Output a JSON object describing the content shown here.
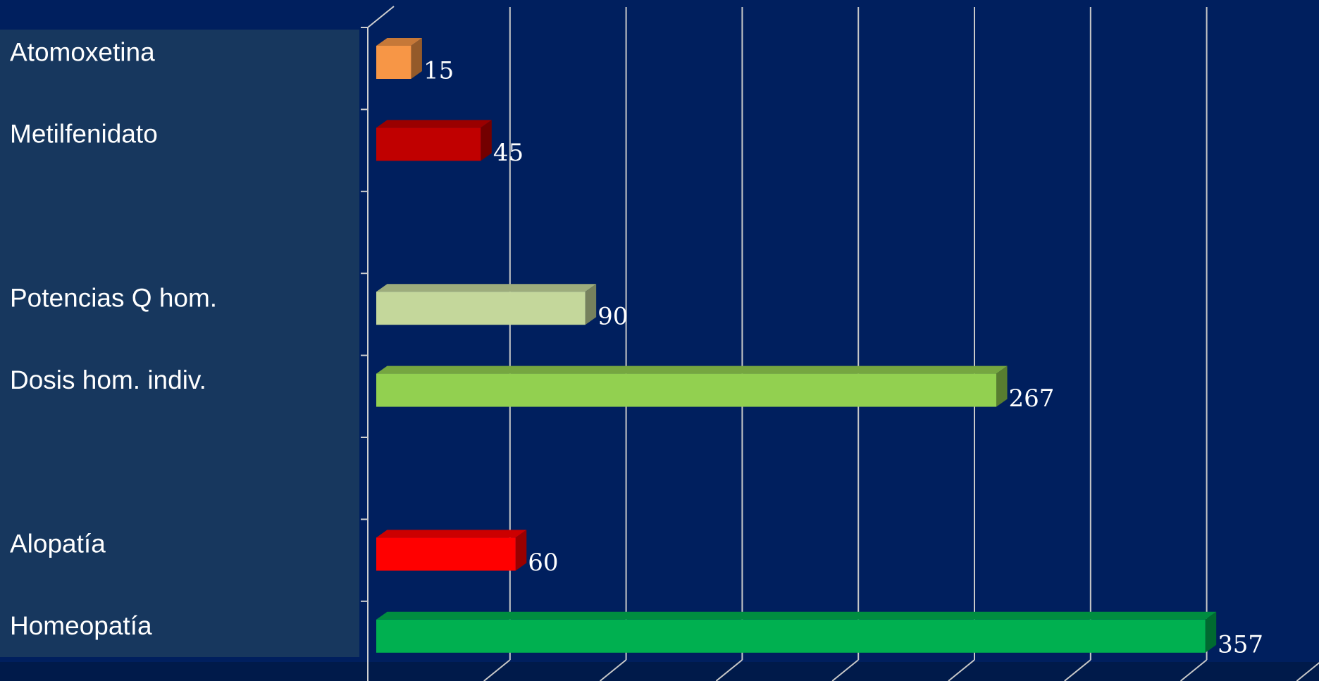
{
  "chart_data": {
    "type": "bar3d_horizontal",
    "categories": [
      "Atomoxetina",
      "Metilfenidato",
      null,
      "Potencias Q hom.",
      "Dosis hom. indiv.",
      null,
      "Alopatía",
      "Homeopatía"
    ],
    "values": [
      15,
      45,
      null,
      90,
      267,
      null,
      60,
      357
    ],
    "colors": [
      "#f79646",
      "#c00000",
      null,
      "#c4d79b",
      "#92d050",
      "#ff0000",
      "#ff0000",
      "#00b050"
    ],
    "xlim": [
      0,
      400
    ],
    "xticks": [
      0,
      50,
      100,
      150,
      200,
      250,
      300,
      350,
      400
    ],
    "grid": true
  }
}
